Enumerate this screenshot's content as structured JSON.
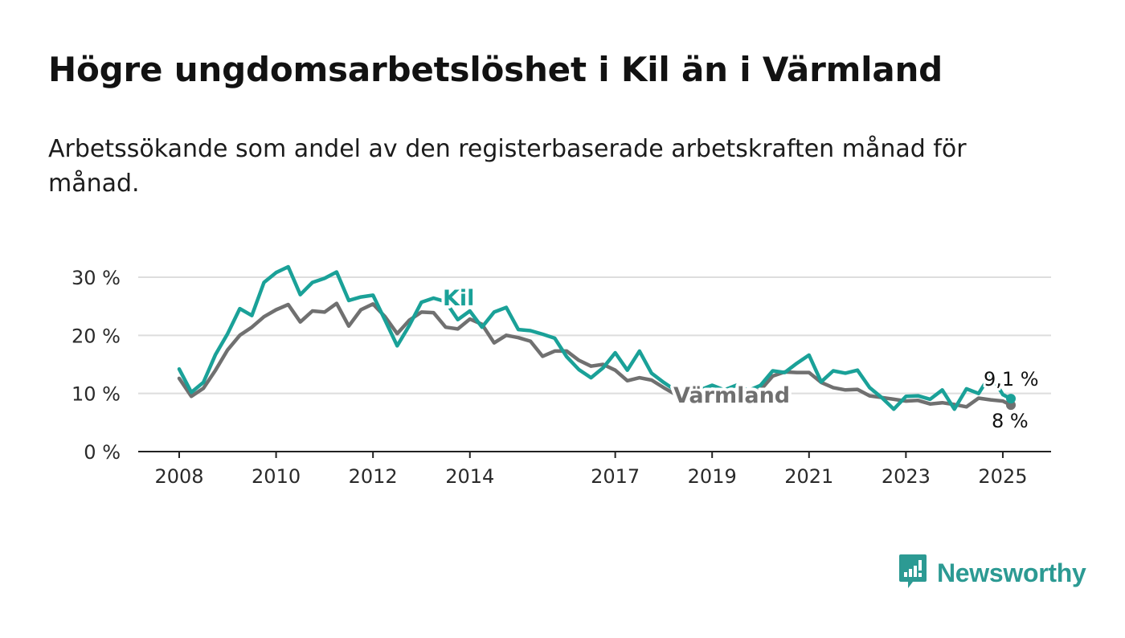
{
  "title": "Högre ungdomsarbetslöshet i Kil än i Värmland",
  "subtitle": "Arbetssökande som andel av den registerbaserade arbetskraften månad för månad.",
  "brand": {
    "name": "Newsworthy",
    "icon": "bar-chart-speech-bubble-icon",
    "color": "#2c9a93"
  },
  "chart_data": {
    "type": "line",
    "title": "Högre ungdomsarbetslöshet i Kil än i Värmland",
    "subtitle": "Arbetssökande som andel av den registerbaserade arbetskraften månad för månad.",
    "x_ticks": [
      "2008",
      "2010",
      "2012",
      "2014",
      "2017",
      "2019",
      "2021",
      "2023",
      "2025"
    ],
    "y_ticks": [
      0,
      10,
      20,
      30
    ],
    "y_tick_labels": [
      "0 %",
      "10 %",
      "20 %",
      "30 %"
    ],
    "xlim": [
      "2008-01",
      "2025-03"
    ],
    "ylim": [
      0,
      30
    ],
    "grid": "horizontal",
    "legend": "none",
    "end_labels": {
      "Kil": "9,1 %",
      "Värmland": "8 %"
    },
    "series": [
      {
        "name": "Kil",
        "color": "#1aa198",
        "points": [
          [
            "2008-01",
            14.2
          ],
          [
            "2008-04",
            10.2
          ],
          [
            "2008-07",
            11.9
          ],
          [
            "2008-10",
            16.7
          ],
          [
            "2009-01",
            20.3
          ],
          [
            "2009-04",
            24.6
          ],
          [
            "2009-07",
            23.4
          ],
          [
            "2009-10",
            29.1
          ],
          [
            "2010-01",
            30.8
          ],
          [
            "2010-04",
            31.8
          ],
          [
            "2010-07",
            27.0
          ],
          [
            "2010-10",
            29.1
          ],
          [
            "2011-01",
            29.8
          ],
          [
            "2011-04",
            30.9
          ],
          [
            "2011-07",
            26.0
          ],
          [
            "2011-10",
            26.6
          ],
          [
            "2012-01",
            26.9
          ],
          [
            "2012-04",
            22.6
          ],
          [
            "2012-07",
            18.2
          ],
          [
            "2012-10",
            21.7
          ],
          [
            "2013-01",
            25.7
          ],
          [
            "2013-04",
            26.4
          ],
          [
            "2013-07",
            25.8
          ],
          [
            "2013-10",
            22.7
          ],
          [
            "2014-01",
            24.2
          ],
          [
            "2014-04",
            21.4
          ],
          [
            "2014-07",
            24.0
          ],
          [
            "2014-10",
            24.8
          ],
          [
            "2015-01",
            21.0
          ],
          [
            "2015-04",
            20.8
          ],
          [
            "2015-07",
            20.2
          ],
          [
            "2015-10",
            19.5
          ],
          [
            "2016-01",
            16.3
          ],
          [
            "2016-04",
            14.1
          ],
          [
            "2016-07",
            12.7
          ],
          [
            "2016-10",
            14.4
          ],
          [
            "2017-01",
            17.0
          ],
          [
            "2017-04",
            14.0
          ],
          [
            "2017-07",
            17.3
          ],
          [
            "2017-10",
            13.5
          ],
          [
            "2018-01",
            11.9
          ],
          [
            "2018-04",
            10.5
          ],
          [
            "2018-07",
            10.2
          ],
          [
            "2018-10",
            10.6
          ],
          [
            "2019-01",
            11.4
          ],
          [
            "2019-04",
            10.6
          ],
          [
            "2019-07",
            11.4
          ],
          [
            "2019-10",
            10.5
          ],
          [
            "2020-01",
            11.4
          ],
          [
            "2020-04",
            13.9
          ],
          [
            "2020-07",
            13.6
          ],
          [
            "2020-10",
            15.2
          ],
          [
            "2021-01",
            16.6
          ],
          [
            "2021-04",
            12.0
          ],
          [
            "2021-07",
            13.9
          ],
          [
            "2021-10",
            13.5
          ],
          [
            "2022-01",
            14.0
          ],
          [
            "2022-04",
            11.0
          ],
          [
            "2022-07",
            9.3
          ],
          [
            "2022-10",
            7.3
          ],
          [
            "2023-01",
            9.5
          ],
          [
            "2023-04",
            9.6
          ],
          [
            "2023-07",
            9.0
          ],
          [
            "2023-10",
            10.6
          ],
          [
            "2024-01",
            7.3
          ],
          [
            "2024-04",
            10.8
          ],
          [
            "2024-07",
            10.0
          ],
          [
            "2024-10",
            13.3
          ],
          [
            "2025-01",
            9.8
          ],
          [
            "2025-03",
            9.1
          ]
        ]
      },
      {
        "name": "Värmland",
        "color": "#707070",
        "points": [
          [
            "2008-01",
            12.6
          ],
          [
            "2008-04",
            9.5
          ],
          [
            "2008-07",
            10.9
          ],
          [
            "2008-10",
            14.0
          ],
          [
            "2009-01",
            17.5
          ],
          [
            "2009-04",
            20.0
          ],
          [
            "2009-07",
            21.4
          ],
          [
            "2009-10",
            23.2
          ],
          [
            "2010-01",
            24.4
          ],
          [
            "2010-04",
            25.3
          ],
          [
            "2010-07",
            22.3
          ],
          [
            "2010-10",
            24.2
          ],
          [
            "2011-01",
            24.0
          ],
          [
            "2011-04",
            25.5
          ],
          [
            "2011-07",
            21.6
          ],
          [
            "2011-10",
            24.4
          ],
          [
            "2012-01",
            25.4
          ],
          [
            "2012-04",
            23.2
          ],
          [
            "2012-07",
            20.3
          ],
          [
            "2012-10",
            22.6
          ],
          [
            "2013-01",
            24.0
          ],
          [
            "2013-04",
            23.9
          ],
          [
            "2013-07",
            21.4
          ],
          [
            "2013-10",
            21.1
          ],
          [
            "2014-01",
            22.8
          ],
          [
            "2014-04",
            21.9
          ],
          [
            "2014-07",
            18.7
          ],
          [
            "2014-10",
            20.0
          ],
          [
            "2015-01",
            19.6
          ],
          [
            "2015-04",
            19.0
          ],
          [
            "2015-07",
            16.4
          ],
          [
            "2015-10",
            17.3
          ],
          [
            "2016-01",
            17.3
          ],
          [
            "2016-04",
            15.7
          ],
          [
            "2016-07",
            14.7
          ],
          [
            "2016-10",
            15.0
          ],
          [
            "2017-01",
            14.0
          ],
          [
            "2017-04",
            12.2
          ],
          [
            "2017-07",
            12.7
          ],
          [
            "2017-10",
            12.3
          ],
          [
            "2018-01",
            11.0
          ],
          [
            "2018-04",
            9.8
          ],
          [
            "2018-07",
            10.0
          ],
          [
            "2018-10",
            10.3
          ],
          [
            "2019-01",
            10.5
          ],
          [
            "2019-04",
            10.3
          ],
          [
            "2019-07",
            10.1
          ],
          [
            "2019-10",
            10.2
          ],
          [
            "2020-01",
            10.6
          ],
          [
            "2020-04",
            13.0
          ],
          [
            "2020-07",
            13.7
          ],
          [
            "2020-10",
            13.6
          ],
          [
            "2021-01",
            13.6
          ],
          [
            "2021-04",
            11.9
          ],
          [
            "2021-07",
            11.0
          ],
          [
            "2021-10",
            10.6
          ],
          [
            "2022-01",
            10.7
          ],
          [
            "2022-04",
            9.6
          ],
          [
            "2022-07",
            9.3
          ],
          [
            "2022-10",
            9.0
          ],
          [
            "2023-01",
            8.7
          ],
          [
            "2023-04",
            8.8
          ],
          [
            "2023-07",
            8.2
          ],
          [
            "2023-10",
            8.4
          ],
          [
            "2024-01",
            8.1
          ],
          [
            "2024-04",
            7.7
          ],
          [
            "2024-07",
            9.2
          ],
          [
            "2024-10",
            8.9
          ],
          [
            "2025-01",
            8.7
          ],
          [
            "2025-03",
            8.0
          ]
        ]
      }
    ]
  }
}
